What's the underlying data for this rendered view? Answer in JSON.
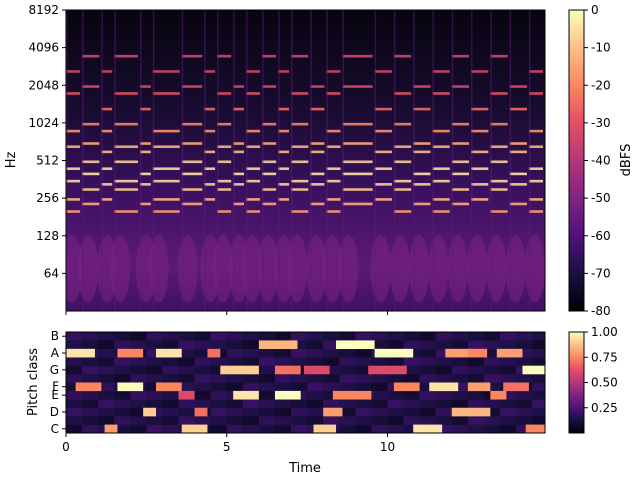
{
  "chart_data": [
    {
      "type": "heatmap",
      "kind": "spectrogram",
      "title": "",
      "xlabel": "",
      "ylabel": "Hz",
      "y_scale": "log",
      "ylim": [
        32,
        8192
      ],
      "xlim": [
        0,
        14.9
      ],
      "yticks": [
        "64",
        "128",
        "256",
        "512",
        "1024",
        "2048",
        "4096",
        "8192"
      ],
      "ytick_values": [
        64,
        128,
        256,
        512,
        1024,
        2048,
        4096,
        8192
      ],
      "colormap": "magma",
      "colorbar": {
        "label": "dBFS",
        "range": [
          -80,
          0
        ],
        "ticks": [
          "0",
          "-10",
          "-20",
          "-30",
          "-40",
          "-50",
          "-60",
          "-70",
          "-80"
        ],
        "tick_values": [
          0,
          -10,
          -20,
          -30,
          -40,
          -50,
          -60,
          -70,
          -80
        ]
      },
      "note_onsets": [
        0,
        0.5,
        1.1,
        1.5,
        2.3,
        2.7,
        3.6,
        4.3,
        4.7,
        5.2,
        5.6,
        6.1,
        6.6,
        7.0,
        7.6,
        8.1,
        8.6,
        9.6,
        10.2,
        10.8,
        11.4,
        12.0,
        12.6,
        13.2,
        13.8,
        14.4
      ],
      "harmonic_bands_hz": [
        200,
        230,
        250,
        300,
        330,
        350,
        400,
        440,
        500,
        600,
        660,
        700,
        880,
        1000,
        1320,
        1760,
        2000,
        2640,
        3500
      ]
    },
    {
      "type": "heatmap",
      "kind": "chromagram",
      "title": "",
      "xlabel": "Time",
      "ylabel": "Pitch class",
      "xlim": [
        0,
        14.9
      ],
      "xticks": [
        "0",
        "5",
        "10"
      ],
      "xtick_values": [
        0,
        5,
        10
      ],
      "pitch_classes": [
        "C",
        "C#",
        "D",
        "D#",
        "E",
        "F",
        "F#",
        "G",
        "G#",
        "A",
        "A#",
        "B"
      ],
      "ytick_labels": [
        "C",
        "D",
        "E",
        "F",
        "G",
        "A",
        "B"
      ],
      "colormap": "magma",
      "colorbar": {
        "label": "",
        "range": [
          0,
          1
        ],
        "ticks": [
          "0.25",
          "0.50",
          "0.75",
          "1.00"
        ],
        "tick_values": [
          0.25,
          0.5,
          0.75,
          1.0
        ]
      },
      "segments": [
        {
          "start": 0.0,
          "end": 0.9,
          "pitch": "A",
          "value": 0.95
        },
        {
          "start": 0.3,
          "end": 1.1,
          "pitch": "F",
          "value": 0.75
        },
        {
          "start": 1.2,
          "end": 1.6,
          "pitch": "C",
          "value": 0.8
        },
        {
          "start": 1.6,
          "end": 2.4,
          "pitch": "A",
          "value": 0.75
        },
        {
          "start": 1.6,
          "end": 2.4,
          "pitch": "F",
          "value": 1.0
        },
        {
          "start": 2.4,
          "end": 2.8,
          "pitch": "D",
          "value": 0.9
        },
        {
          "start": 2.8,
          "end": 3.6,
          "pitch": "A",
          "value": 0.95
        },
        {
          "start": 2.8,
          "end": 3.6,
          "pitch": "F",
          "value": 0.75
        },
        {
          "start": 3.5,
          "end": 4.0,
          "pitch": "E",
          "value": 0.6
        },
        {
          "start": 3.6,
          "end": 4.4,
          "pitch": "C",
          "value": 0.9
        },
        {
          "start": 4.0,
          "end": 4.4,
          "pitch": "D",
          "value": 0.7
        },
        {
          "start": 4.4,
          "end": 4.8,
          "pitch": "A",
          "value": 0.7
        },
        {
          "start": 4.8,
          "end": 6.0,
          "pitch": "G",
          "value": 0.9
        },
        {
          "start": 5.2,
          "end": 6.0,
          "pitch": "E",
          "value": 0.95
        },
        {
          "start": 6.0,
          "end": 7.2,
          "pitch": "A#",
          "value": 0.85
        },
        {
          "start": 6.5,
          "end": 7.3,
          "pitch": "G",
          "value": 0.7
        },
        {
          "start": 6.5,
          "end": 7.3,
          "pitch": "E",
          "value": 1.0
        },
        {
          "start": 7.4,
          "end": 8.2,
          "pitch": "G",
          "value": 0.6
        },
        {
          "start": 7.7,
          "end": 8.4,
          "pitch": "C",
          "value": 0.9
        },
        {
          "start": 8.0,
          "end": 8.6,
          "pitch": "D",
          "value": 0.8
        },
        {
          "start": 8.3,
          "end": 9.5,
          "pitch": "E",
          "value": 0.75
        },
        {
          "start": 8.4,
          "end": 9.6,
          "pitch": "A#",
          "value": 1.0
        },
        {
          "start": 9.6,
          "end": 10.8,
          "pitch": "A",
          "value": 1.0
        },
        {
          "start": 9.4,
          "end": 10.6,
          "pitch": "G",
          "value": 0.6
        },
        {
          "start": 10.2,
          "end": 11.0,
          "pitch": "F",
          "value": 0.75
        },
        {
          "start": 10.8,
          "end": 11.7,
          "pitch": "C",
          "value": 0.95
        },
        {
          "start": 11.3,
          "end": 12.2,
          "pitch": "F",
          "value": 0.95
        },
        {
          "start": 11.8,
          "end": 12.6,
          "pitch": "A",
          "value": 0.8
        },
        {
          "start": 12.0,
          "end": 13.2,
          "pitch": "D",
          "value": 0.85
        },
        {
          "start": 12.5,
          "end": 13.2,
          "pitch": "F",
          "value": 0.8
        },
        {
          "start": 12.5,
          "end": 13.1,
          "pitch": "A",
          "value": 0.75
        },
        {
          "start": 13.2,
          "end": 13.7,
          "pitch": "E",
          "value": 0.75
        },
        {
          "start": 13.4,
          "end": 14.2,
          "pitch": "A",
          "value": 0.8
        },
        {
          "start": 13.6,
          "end": 14.4,
          "pitch": "F",
          "value": 0.7
        },
        {
          "start": 14.2,
          "end": 14.9,
          "pitch": "G",
          "value": 1.0
        },
        {
          "start": 14.3,
          "end": 14.9,
          "pitch": "C",
          "value": 0.75
        }
      ]
    }
  ]
}
